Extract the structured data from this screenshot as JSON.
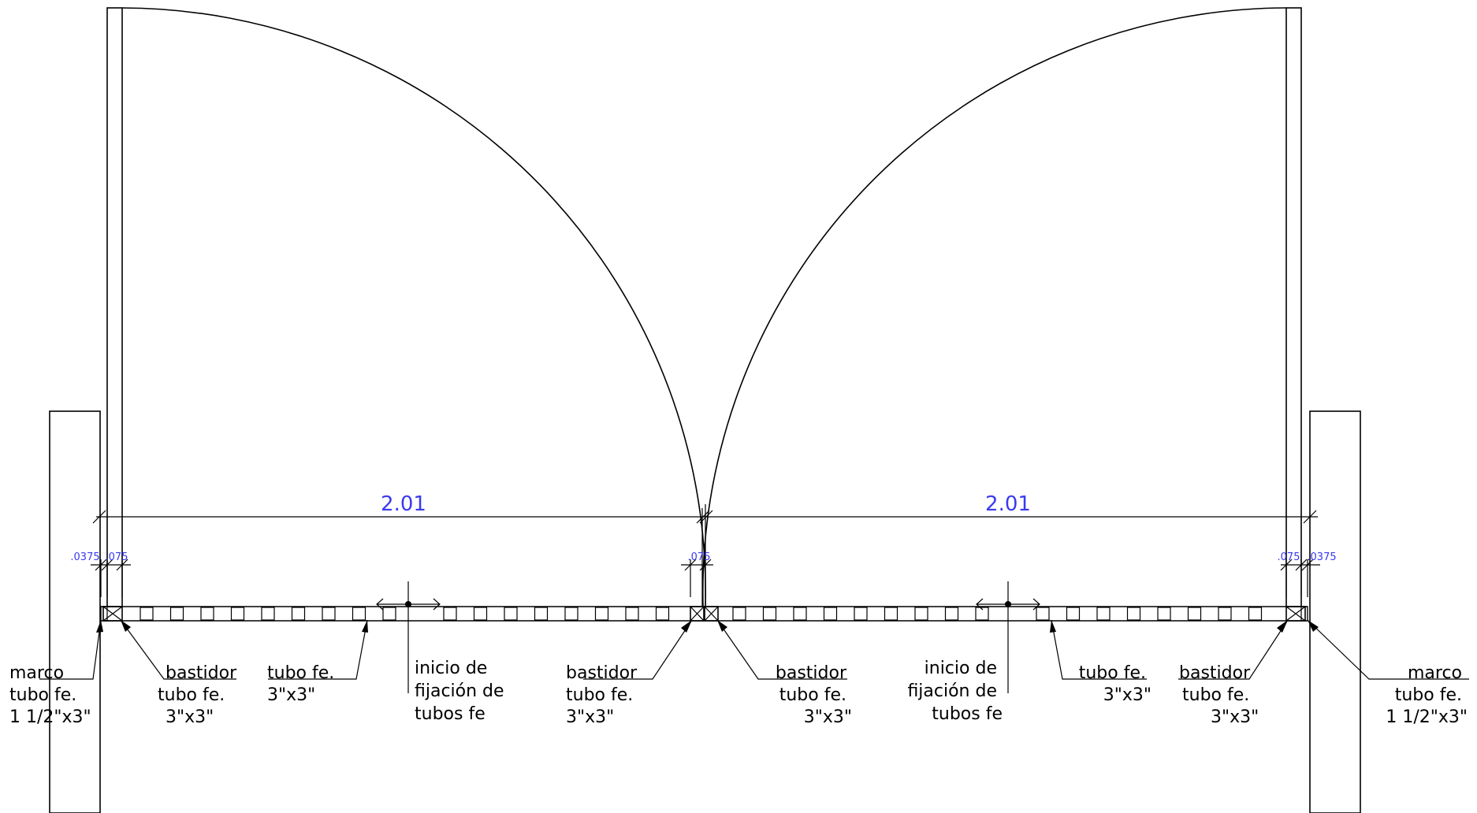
{
  "dimensions": {
    "left_span": "2.01",
    "right_span": "2.01",
    "left_frame_width": ".0375",
    "left_post_width": ".075",
    "center_gap": ".075",
    "right_post_width": ".075",
    "right_frame_width": ".0375"
  },
  "labels": {
    "marco_left": [
      "marco",
      "tubo fe.",
      "1 1/2\"x3\""
    ],
    "bastidor_left": [
      "bastidor",
      "tubo fe.",
      "3\"x3\""
    ],
    "tubo_left": [
      "tubo fe.",
      "3\"x3\""
    ],
    "inicio_left": [
      "inicio de",
      "fijación de",
      "tubos fe"
    ],
    "bastidor_center_left": [
      "bastidor",
      "tubo fe.",
      "3\"x3\""
    ],
    "bastidor_center_right": [
      "bastidor",
      "tubo fe.",
      "3\"x3\""
    ],
    "inicio_right": [
      "inicio de",
      "fijación de",
      "tubos fe"
    ],
    "tubo_right": [
      "tubo fe.",
      "3\"x3\""
    ],
    "bastidor_right": [
      "bastidor",
      "tubo fe.",
      "3\"x3\""
    ],
    "marco_right": [
      "marco",
      "tubo fe.",
      "1 1/2\"x3\""
    ]
  },
  "colors": {
    "line": "#000000",
    "dimension_text": "#3a3af0"
  }
}
